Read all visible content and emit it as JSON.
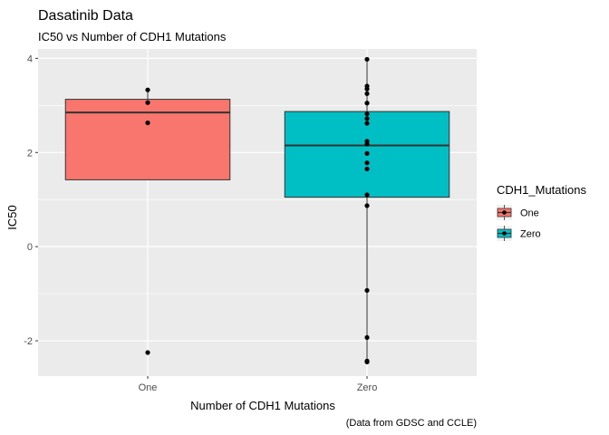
{
  "chart_data": {
    "type": "boxplot",
    "title": "Dasatinib Data",
    "subtitle": "IC50 vs Number of CDH1 Mutations",
    "xlabel": "Number of CDH1 Mutations",
    "ylabel": "IC50",
    "caption": "(Data from GDSC and CCLE)",
    "categories": [
      "One",
      "Zero"
    ],
    "ylim": [
      -2.75,
      4.2
    ],
    "yticks": [
      -2,
      0,
      2,
      4
    ],
    "grid": true,
    "legend": {
      "title": "CDH1_Mutations",
      "placement": "right",
      "entries": [
        "One",
        "Zero"
      ]
    },
    "colors": {
      "One": "#F8766D",
      "Zero": "#00BFC4"
    },
    "boxes": [
      {
        "category": "One",
        "q1": 1.42,
        "median": 2.85,
        "q3": 3.13,
        "whisker_low": 1.42,
        "whisker_high": 3.33
      },
      {
        "category": "Zero",
        "q1": 1.05,
        "median": 2.15,
        "q3": 2.87,
        "whisker_low": -2.45,
        "whisker_high": 3.98
      }
    ],
    "points": [
      {
        "category": "One",
        "values": [
          3.33,
          3.06,
          2.63,
          -2.25
        ]
      },
      {
        "category": "Zero",
        "values": [
          3.98,
          3.41,
          3.35,
          3.25,
          3.05,
          2.82,
          2.72,
          2.62,
          2.24,
          2.18,
          1.98,
          1.78,
          1.65,
          1.1,
          0.87,
          -0.93,
          -1.93,
          -2.43,
          -2.45
        ]
      }
    ]
  }
}
